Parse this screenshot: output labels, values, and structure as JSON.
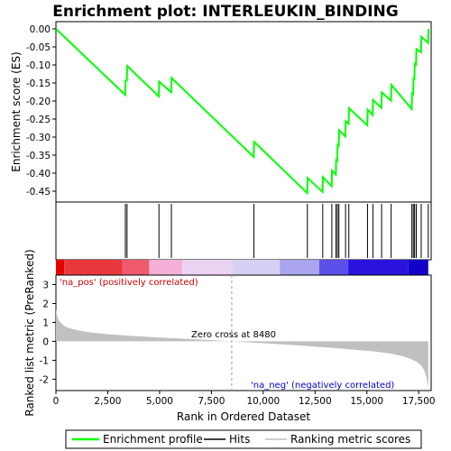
{
  "chart_data": {
    "type": "line",
    "title": "Enrichment plot: INTERLEUKIN_BINDING",
    "top_panel": {
      "ylabel": "Enrichment score (ES)",
      "ylim": [
        -0.48,
        0.02
      ],
      "yticks": [
        0.0,
        -0.05,
        -0.1,
        -0.15,
        -0.2,
        -0.25,
        -0.3,
        -0.35,
        -0.4,
        -0.45
      ],
      "ytick_labels": [
        "0.00",
        "-0.05",
        "-0.10",
        "-0.15",
        "-0.20",
        "-0.25",
        "-0.30",
        "-0.35",
        "-0.40",
        "-0.45"
      ],
      "series": [
        {
          "name": "Enrichment profile",
          "color": "#00ff00",
          "x": [
            0,
            3340,
            3360,
            3420,
            3440,
            4960,
            4980,
            5560,
            5580,
            9540,
            9560,
            12120,
            12140,
            12860,
            12880,
            13300,
            13320,
            13500,
            13520,
            13570,
            13590,
            13640,
            13660,
            13960,
            13980,
            14120,
            14140,
            15020,
            15040,
            15280,
            15300,
            15700,
            15720,
            16160,
            16180,
            17160,
            17180,
            17230,
            17250,
            17290,
            17310,
            17370,
            17390,
            17610,
            17630,
            17950,
            17970
          ],
          "y": [
            0.0,
            -0.183,
            -0.143,
            -0.143,
            -0.103,
            -0.187,
            -0.146,
            -0.176,
            -0.136,
            -0.355,
            -0.313,
            -0.455,
            -0.413,
            -0.452,
            -0.411,
            -0.436,
            -0.393,
            -0.404,
            -0.363,
            -0.365,
            -0.322,
            -0.324,
            -0.281,
            -0.298,
            -0.256,
            -0.263,
            -0.22,
            -0.267,
            -0.224,
            -0.239,
            -0.197,
            -0.219,
            -0.176,
            -0.199,
            -0.155,
            -0.222,
            -0.179,
            -0.181,
            -0.138,
            -0.139,
            -0.097,
            -0.099,
            -0.056,
            -0.065,
            -0.022,
            -0.039,
            0.0
          ]
        }
      ]
    },
    "hits_panel": {
      "name": "Hits",
      "hit_positions": [
        3350,
        3430,
        4970,
        5570,
        9550,
        12130,
        12870,
        13310,
        13510,
        13580,
        13650,
        13970,
        14130,
        15030,
        15290,
        15710,
        16170,
        17170,
        17240,
        17300,
        17380,
        17620,
        17960
      ]
    },
    "bottom_panel": {
      "ylabel": "Ranked list metric (PreRanked)",
      "xlabel": "Rank in Ordered Dataset",
      "ylim": [
        -2.6,
        3.5
      ],
      "yticks": [
        3,
        2,
        1,
        0,
        -1,
        -2
      ],
      "ytick_labels": [
        "3",
        "2",
        "1",
        "0",
        "-1",
        "-2"
      ],
      "xlim": [
        0,
        18100
      ],
      "xticks": [
        0,
        2500,
        5000,
        7500,
        10000,
        12500,
        15000,
        17500
      ],
      "xtick_labels": [
        "0",
        "2,500",
        "5,000",
        "7,500",
        "10,000",
        "12,500",
        "15,000",
        "17,500"
      ],
      "metric_profile": {
        "name": "Ranking metric scores",
        "color": "#c0c0c0",
        "rank": [
          0,
          50,
          150,
          300,
          500,
          800,
          1200,
          1700,
          2500,
          3500,
          5000,
          6500,
          8480,
          10000,
          11500,
          12500,
          13500,
          14500,
          15500,
          16200,
          16700,
          17100,
          17400,
          17600,
          17750,
          17850,
          17920,
          17960
        ],
        "value": [
          1.7,
          1.4,
          1.1,
          0.9,
          0.75,
          0.65,
          0.55,
          0.47,
          0.38,
          0.3,
          0.2,
          0.12,
          0.0,
          -0.1,
          -0.2,
          -0.28,
          -0.36,
          -0.45,
          -0.55,
          -0.66,
          -0.78,
          -0.92,
          -1.08,
          -1.25,
          -1.5,
          -1.8,
          -2.2,
          -2.4
        ]
      },
      "zero_cross": 8480,
      "annotations": {
        "pos": "'na_pos' (positively correlated)",
        "neg": "'na_neg' (negatively correlated)",
        "zero": "Zero cross at 8480"
      },
      "annotation_colors": {
        "pos": "#cc0000",
        "neg": "#0000cc"
      }
    },
    "heat_bar_colors": [
      "#e60000",
      "#e8383c",
      "#f05a6e",
      "#f5b0d8",
      "#ecd2f2",
      "#d8d0f4",
      "#aaa5ee",
      "#5c50e8",
      "#2a14dd",
      "#1000c8"
    ],
    "heat_bar_stops": [
      0,
      400,
      3200,
      4500,
      6100,
      8500,
      10800,
      12700,
      14100,
      17000,
      17960
    ],
    "legend": {
      "items": [
        "Enrichment profile",
        "Hits",
        "Ranking metric scores"
      ],
      "placement": "bottom"
    }
  }
}
